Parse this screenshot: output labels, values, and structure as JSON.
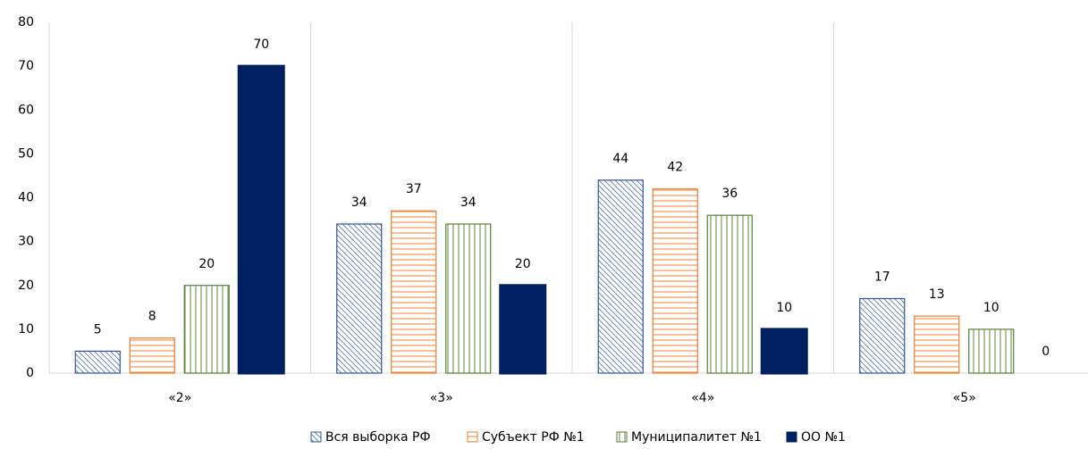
{
  "chart_data": {
    "type": "bar",
    "categories": [
      "«2»",
      "«3»",
      "«4»",
      "«5»"
    ],
    "series": [
      {
        "name": "Вся выборка РФ",
        "color": "#2f5597",
        "pattern": "diagonal",
        "values": [
          5,
          34,
          44,
          17
        ]
      },
      {
        "name": "Субъект РФ №1",
        "color": "#ed7d31",
        "pattern": "horizontal",
        "values": [
          8,
          37,
          42,
          13
        ]
      },
      {
        "name": "Муниципалитет №1",
        "color": "#548235",
        "pattern": "vertical",
        "values": [
          20,
          34,
          36,
          10
        ]
      },
      {
        "name": "ОО №1",
        "color": "#002060",
        "pattern": "solid",
        "values": [
          70,
          20,
          10,
          0
        ]
      }
    ],
    "ylim": [
      0,
      80
    ],
    "yticks": [
      0,
      10,
      20,
      30,
      40,
      50,
      60,
      70,
      80
    ],
    "legend": "bottom"
  }
}
